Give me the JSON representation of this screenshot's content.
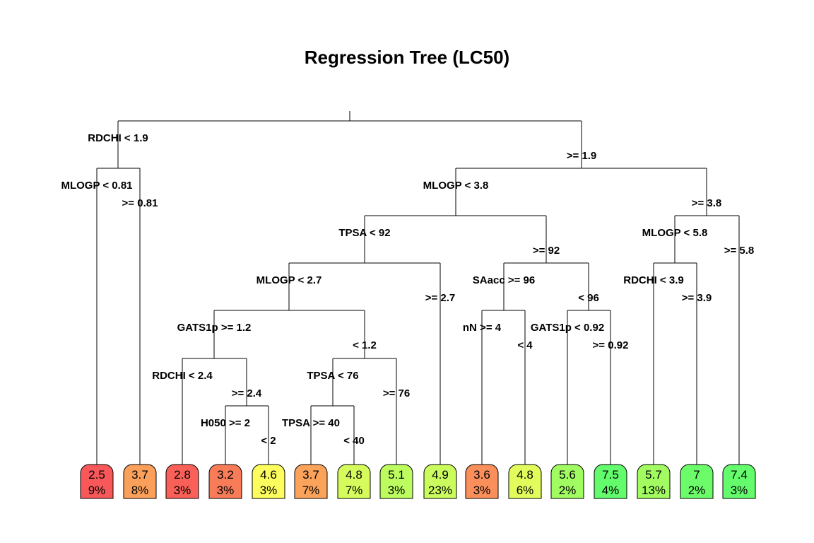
{
  "title": "Regression Tree (LC50)",
  "tree": {
    "splits": [
      {
        "id": "s1",
        "left_label": "RDCHI < 1.9",
        "right_label": ">= 1.9"
      },
      {
        "id": "s2",
        "left_label": "MLOGP < 0.81",
        "right_label": ">= 0.81"
      },
      {
        "id": "s3",
        "left_label": "MLOGP < 3.8",
        "right_label": ">= 3.8"
      },
      {
        "id": "s4",
        "left_label": "TPSA < 92",
        "right_label": ">= 92"
      },
      {
        "id": "s5",
        "left_label": "MLOGP < 5.8",
        "right_label": ">= 5.8"
      },
      {
        "id": "s6",
        "left_label": "MLOGP < 2.7",
        "right_label": ">= 2.7"
      },
      {
        "id": "s7",
        "left_label": "SAacc >= 96",
        "right_label": "< 96"
      },
      {
        "id": "s8",
        "left_label": "RDCHI < 3.9",
        "right_label": ">= 3.9"
      },
      {
        "id": "s9",
        "left_label": "GATS1p >= 1.2",
        "right_label": "< 1.2"
      },
      {
        "id": "s10",
        "left_label": "nN >= 4",
        "right_label": "< 4"
      },
      {
        "id": "s11",
        "left_label": "GATS1p < 0.92",
        "right_label": ">= 0.92"
      },
      {
        "id": "s12",
        "left_label": "RDCHI < 2.4",
        "right_label": ">= 2.4"
      },
      {
        "id": "s13",
        "left_label": "TPSA < 76",
        "right_label": ">= 76"
      },
      {
        "id": "s14",
        "left_label": "H050 >= 2",
        "right_label": "< 2"
      },
      {
        "id": "s15",
        "left_label": "TPSA >= 40",
        "right_label": "< 40"
      }
    ],
    "leaves": [
      {
        "value": "2.5",
        "percent": "9%",
        "color": "#f8585a"
      },
      {
        "value": "3.7",
        "percent": "8%",
        "color": "#fba05b"
      },
      {
        "value": "2.8",
        "percent": "3%",
        "color": "#f96058"
      },
      {
        "value": "3.2",
        "percent": "3%",
        "color": "#f97c59"
      },
      {
        "value": "4.6",
        "percent": "3%",
        "color": "#fdfd5d"
      },
      {
        "value": "3.7",
        "percent": "7%",
        "color": "#fba35b"
      },
      {
        "value": "4.8",
        "percent": "7%",
        "color": "#d5fc5c"
      },
      {
        "value": "5.1",
        "percent": "3%",
        "color": "#bcfc5f"
      },
      {
        "value": "4.9",
        "percent": "23%",
        "color": "#cbfc5e"
      },
      {
        "value": "3.6",
        "percent": "3%",
        "color": "#fa8f5b"
      },
      {
        "value": "4.8",
        "percent": "6%",
        "color": "#e2fc5c"
      },
      {
        "value": "5.6",
        "percent": "2%",
        "color": "#a0fc61"
      },
      {
        "value": "7.5",
        "percent": "4%",
        "color": "#62fc6c"
      },
      {
        "value": "5.7",
        "percent": "13%",
        "color": "#a2fc61"
      },
      {
        "value": "7",
        "percent": "2%",
        "color": "#6cfc6a"
      },
      {
        "value": "7.4",
        "percent": "3%",
        "color": "#64fc6c"
      }
    ]
  }
}
